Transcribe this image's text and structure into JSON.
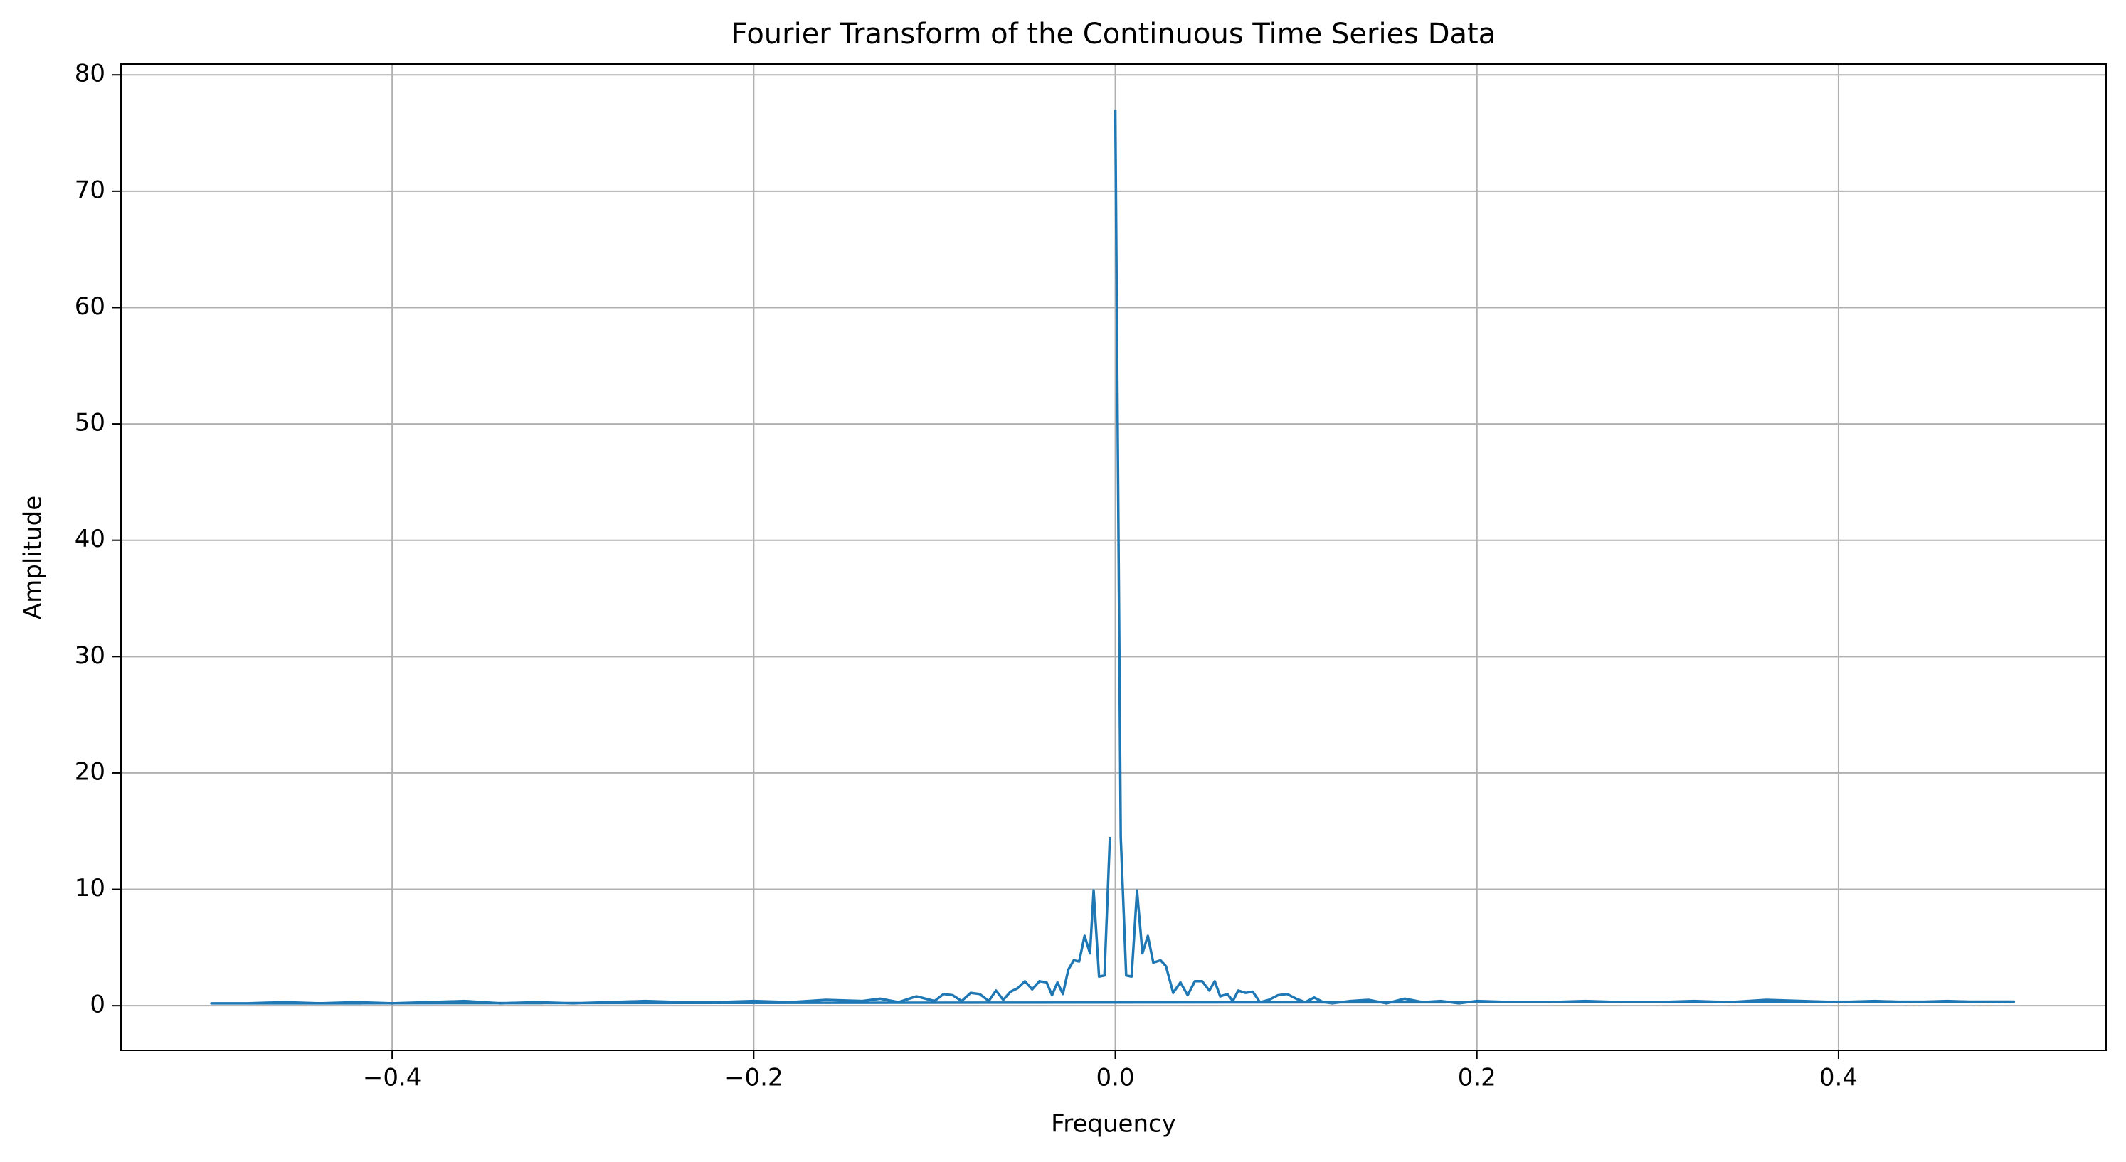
{
  "chart_data": {
    "type": "line",
    "title": "Fourier Transform of the Continuous Time Series Data",
    "x_label": "Frequency",
    "y_label": "Amplitude",
    "grid": true,
    "xlim": [
      -0.55,
      0.548
    ],
    "ylim": [
      -3.84,
      80.93
    ],
    "xticks": [
      {
        "value": -0.4,
        "label": "−0.4"
      },
      {
        "value": -0.2,
        "label": "−0.2"
      },
      {
        "value": 0,
        "label": "0.0"
      },
      {
        "value": 0.2,
        "label": "0.2"
      },
      {
        "value": 0.4,
        "label": "0.4"
      }
    ],
    "yticks": [
      0,
      10,
      20,
      30,
      40,
      50,
      60,
      70,
      80
    ],
    "series": [
      {
        "color": "#1f77b4",
        "x": [
          0,
          0.003,
          0.006,
          0.009,
          0.012,
          0.015,
          0.018,
          0.021,
          0.025,
          0.028,
          0.032,
          0.036,
          0.04,
          0.044,
          0.048,
          0.052,
          0.055,
          0.058,
          0.062,
          0.065,
          0.068,
          0.072,
          0.076,
          0.08,
          0.085,
          0.09,
          0.095,
          0.1,
          0.105,
          0.11,
          0.115,
          0.12,
          0.13,
          0.14,
          0.15,
          0.16,
          0.17,
          0.18,
          0.19,
          0.2,
          0.22,
          0.24,
          0.26,
          0.28,
          0.3,
          0.32,
          0.34,
          0.36,
          0.38,
          0.4,
          0.42,
          0.44,
          0.46,
          0.48,
          0.497,
          -0.5,
          -0.48,
          -0.46,
          -0.44,
          -0.42,
          -0.4,
          -0.38,
          -0.36,
          -0.34,
          -0.32,
          -0.3,
          -0.28,
          -0.26,
          -0.24,
          -0.22,
          -0.2,
          -0.18,
          -0.16,
          -0.14,
          -0.13,
          -0.12,
          -0.11,
          -0.1,
          -0.095,
          -0.09,
          -0.085,
          -0.08,
          -0.075,
          -0.07,
          -0.066,
          -0.062,
          -0.058,
          -0.054,
          -0.05,
          -0.046,
          -0.042,
          -0.038,
          -0.035,
          -0.032,
          -0.029,
          -0.026,
          -0.023,
          -0.02,
          -0.017,
          -0.014,
          -0.012,
          -0.009,
          -0.006,
          -0.003
        ],
        "values": [
          77,
          14.5,
          2.6,
          2.5,
          9.9,
          4.5,
          6,
          3.7,
          3.9,
          3.4,
          1.1,
          2,
          0.9,
          2.1,
          2.1,
          1.3,
          2.1,
          0.8,
          1,
          0.4,
          1.3,
          1.1,
          1.2,
          0.3,
          0.5,
          0.9,
          1,
          0.6,
          0.3,
          0.7,
          0.3,
          0.2,
          0.4,
          0.5,
          0.2,
          0.6,
          0.3,
          0.4,
          0.2,
          0.4,
          0.3,
          0.3,
          0.4,
          0.3,
          0.3,
          0.4,
          0.3,
          0.5,
          0.4,
          0.3,
          0.4,
          0.3,
          0.4,
          0.3,
          0.35,
          0.2,
          0.2,
          0.3,
          0.2,
          0.3,
          0.2,
          0.3,
          0.4,
          0.2,
          0.3,
          0.2,
          0.3,
          0.4,
          0.3,
          0.3,
          0.4,
          0.3,
          0.5,
          0.4,
          0.6,
          0.3,
          0.8,
          0.4,
          1,
          0.9,
          0.4,
          1.1,
          1,
          0.4,
          1.3,
          0.5,
          1.2,
          1.5,
          2.1,
          1.4,
          2.1,
          2,
          0.9,
          2,
          1,
          3.1,
          3.9,
          3.8,
          6,
          4.5,
          9.9,
          2.5,
          2.6,
          14.5
        ]
      }
    ]
  }
}
